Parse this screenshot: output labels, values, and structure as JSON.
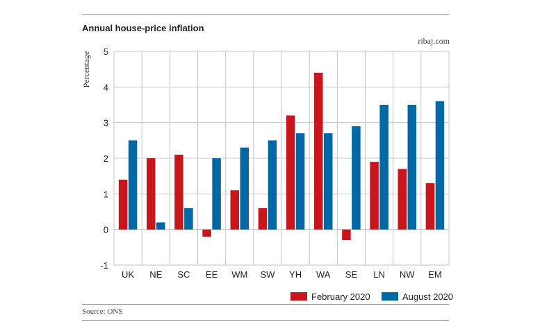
{
  "header": {
    "title": "Annual house-price inflation",
    "credit": "ribaj.com"
  },
  "footer": {
    "source": "Source: ONS"
  },
  "chart_data": {
    "type": "bar",
    "title": "Annual house-price inflation",
    "xlabel": "",
    "ylabel": "Percentage",
    "ylim": [
      -1,
      5
    ],
    "yticks": [
      -1,
      0,
      1,
      2,
      3,
      4,
      5
    ],
    "grid": true,
    "legend_position": "bottom-right",
    "categories": [
      "UK",
      "NE",
      "SC",
      "EE",
      "WM",
      "SW",
      "YH",
      "WA",
      "SE",
      "LN",
      "NW",
      "EM"
    ],
    "series": [
      {
        "name": "February 2020",
        "color": "#c8161d",
        "values": [
          1.4,
          2.0,
          2.1,
          -0.2,
          1.1,
          0.6,
          3.2,
          4.4,
          -0.3,
          1.9,
          1.7,
          1.3
        ]
      },
      {
        "name": "August 2020",
        "color": "#0068a5",
        "values": [
          2.5,
          0.2,
          0.6,
          2.0,
          2.3,
          2.5,
          2.7,
          2.7,
          2.9,
          3.5,
          3.5,
          3.6
        ]
      }
    ]
  }
}
